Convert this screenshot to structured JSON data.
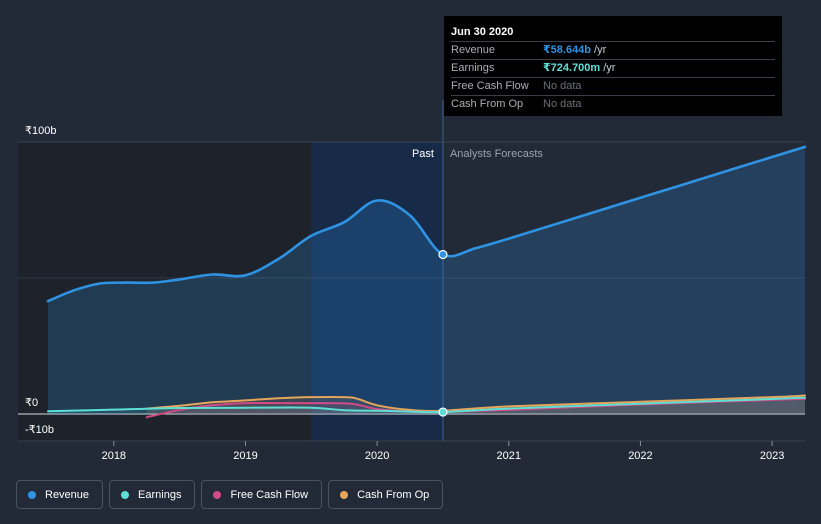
{
  "chart_data": {
    "type": "line",
    "currency_unit": "₹ billions",
    "y_ticks": [
      {
        "value": 100,
        "label": "₹100b"
      },
      {
        "value": 0,
        "label": "₹0"
      },
      {
        "value": -10,
        "label": "-₹10b"
      }
    ],
    "ylim": [
      -10,
      100
    ],
    "xlim": [
      2017.5,
      2023.25
    ],
    "x_ticks": [
      2018,
      2019,
      2020,
      2021,
      2022,
      2023
    ],
    "x_tick_labels": [
      "2018",
      "2019",
      "2020",
      "2021",
      "2022",
      "2023"
    ],
    "past_label": "Past",
    "forecast_label": "Analysts Forecasts",
    "past_end": 2020.5,
    "highlight_start": 2019.5,
    "series": [
      {
        "name": "Revenue",
        "color": "#2f93e3",
        "points": [
          [
            2017.5,
            41.5
          ],
          [
            2017.7,
            45.5
          ],
          [
            2017.9,
            48.0
          ],
          [
            2018.1,
            48.3
          ],
          [
            2018.3,
            48.3
          ],
          [
            2018.5,
            49.5
          ],
          [
            2018.75,
            51.3
          ],
          [
            2019.0,
            51.0
          ],
          [
            2019.25,
            57.0
          ],
          [
            2019.5,
            65.5
          ],
          [
            2019.75,
            70.5
          ],
          [
            2020.0,
            78.5
          ],
          [
            2020.25,
            73.0
          ],
          [
            2020.5,
            58.6
          ]
        ],
        "forecast_points": [
          [
            2020.5,
            58.6
          ],
          [
            2020.75,
            61.0
          ],
          [
            2021.0,
            64.5
          ],
          [
            2021.5,
            72.0
          ],
          [
            2022.0,
            79.5
          ],
          [
            2022.5,
            87.0
          ],
          [
            2023.0,
            94.5
          ],
          [
            2023.25,
            98.2
          ]
        ]
      },
      {
        "name": "Earnings",
        "color": "#5ce0d5",
        "points": [
          [
            2017.5,
            1.0
          ],
          [
            2018.0,
            1.6
          ],
          [
            2018.5,
            2.2
          ],
          [
            2019.0,
            2.3
          ],
          [
            2019.5,
            2.3
          ],
          [
            2019.75,
            1.4
          ],
          [
            2020.0,
            1.2
          ],
          [
            2020.25,
            0.9
          ],
          [
            2020.5,
            0.72
          ]
        ],
        "forecast_points": [
          [
            2020.5,
            0.72
          ],
          [
            2021.0,
            2.0
          ],
          [
            2022.0,
            3.8
          ],
          [
            2023.0,
            5.5
          ],
          [
            2023.25,
            6.0
          ]
        ]
      },
      {
        "name": "Free Cash Flow",
        "color": "#d04b86",
        "points": [
          [
            2018.25,
            -1.2
          ],
          [
            2018.5,
            1.5
          ],
          [
            2018.75,
            3.2
          ],
          [
            2019.0,
            4.0
          ],
          [
            2019.5,
            4.0
          ],
          [
            2019.8,
            3.8
          ],
          [
            2020.0,
            1.8
          ],
          [
            2020.25,
            0.9
          ],
          [
            2020.5,
            0.8
          ]
        ],
        "forecast_points": [
          [
            2020.5,
            0.8
          ],
          [
            2021.0,
            1.5
          ],
          [
            2022.0,
            3.5
          ],
          [
            2023.0,
            5.2
          ],
          [
            2023.25,
            5.6
          ]
        ]
      },
      {
        "name": "Cash From Op",
        "color": "#e5a55a",
        "points": [
          [
            2018.25,
            2.0
          ],
          [
            2018.5,
            3.0
          ],
          [
            2018.75,
            4.3
          ],
          [
            2019.0,
            5.0
          ],
          [
            2019.25,
            5.8
          ],
          [
            2019.5,
            6.2
          ],
          [
            2019.75,
            6.2
          ],
          [
            2019.85,
            5.6
          ],
          [
            2020.0,
            3.2
          ],
          [
            2020.25,
            1.5
          ],
          [
            2020.5,
            1.2
          ]
        ],
        "forecast_points": [
          [
            2020.5,
            1.2
          ],
          [
            2021.0,
            2.8
          ],
          [
            2022.0,
            4.5
          ],
          [
            2023.0,
            6.2
          ],
          [
            2023.25,
            6.8
          ]
        ]
      }
    ],
    "highlight_point": {
      "series": "Revenue",
      "x": 2020.5,
      "y": 58.644
    }
  },
  "tooltip": {
    "date": "Jun 30 2020",
    "rows": [
      {
        "name": "Revenue",
        "value": "₹58.644b",
        "unit": "/yr",
        "color": "#2f93e3",
        "active": true
      },
      {
        "name": "Earnings",
        "value": "₹724.700m",
        "unit": "/yr",
        "color": "#5ce0d5",
        "active": true
      },
      {
        "name": "Free Cash Flow",
        "value": "No data",
        "unit": "",
        "color": "#6b7079",
        "active": false
      },
      {
        "name": "Cash From Op",
        "value": "No data",
        "unit": "",
        "color": "#6b7079",
        "active": false
      }
    ]
  },
  "legend": [
    {
      "label": "Revenue",
      "color": "#2f93e3"
    },
    {
      "label": "Earnings",
      "color": "#5ce0d5"
    },
    {
      "label": "Free Cash Flow",
      "color": "#d04b86"
    },
    {
      "label": "Cash From Op",
      "color": "#e5a55a"
    }
  ]
}
